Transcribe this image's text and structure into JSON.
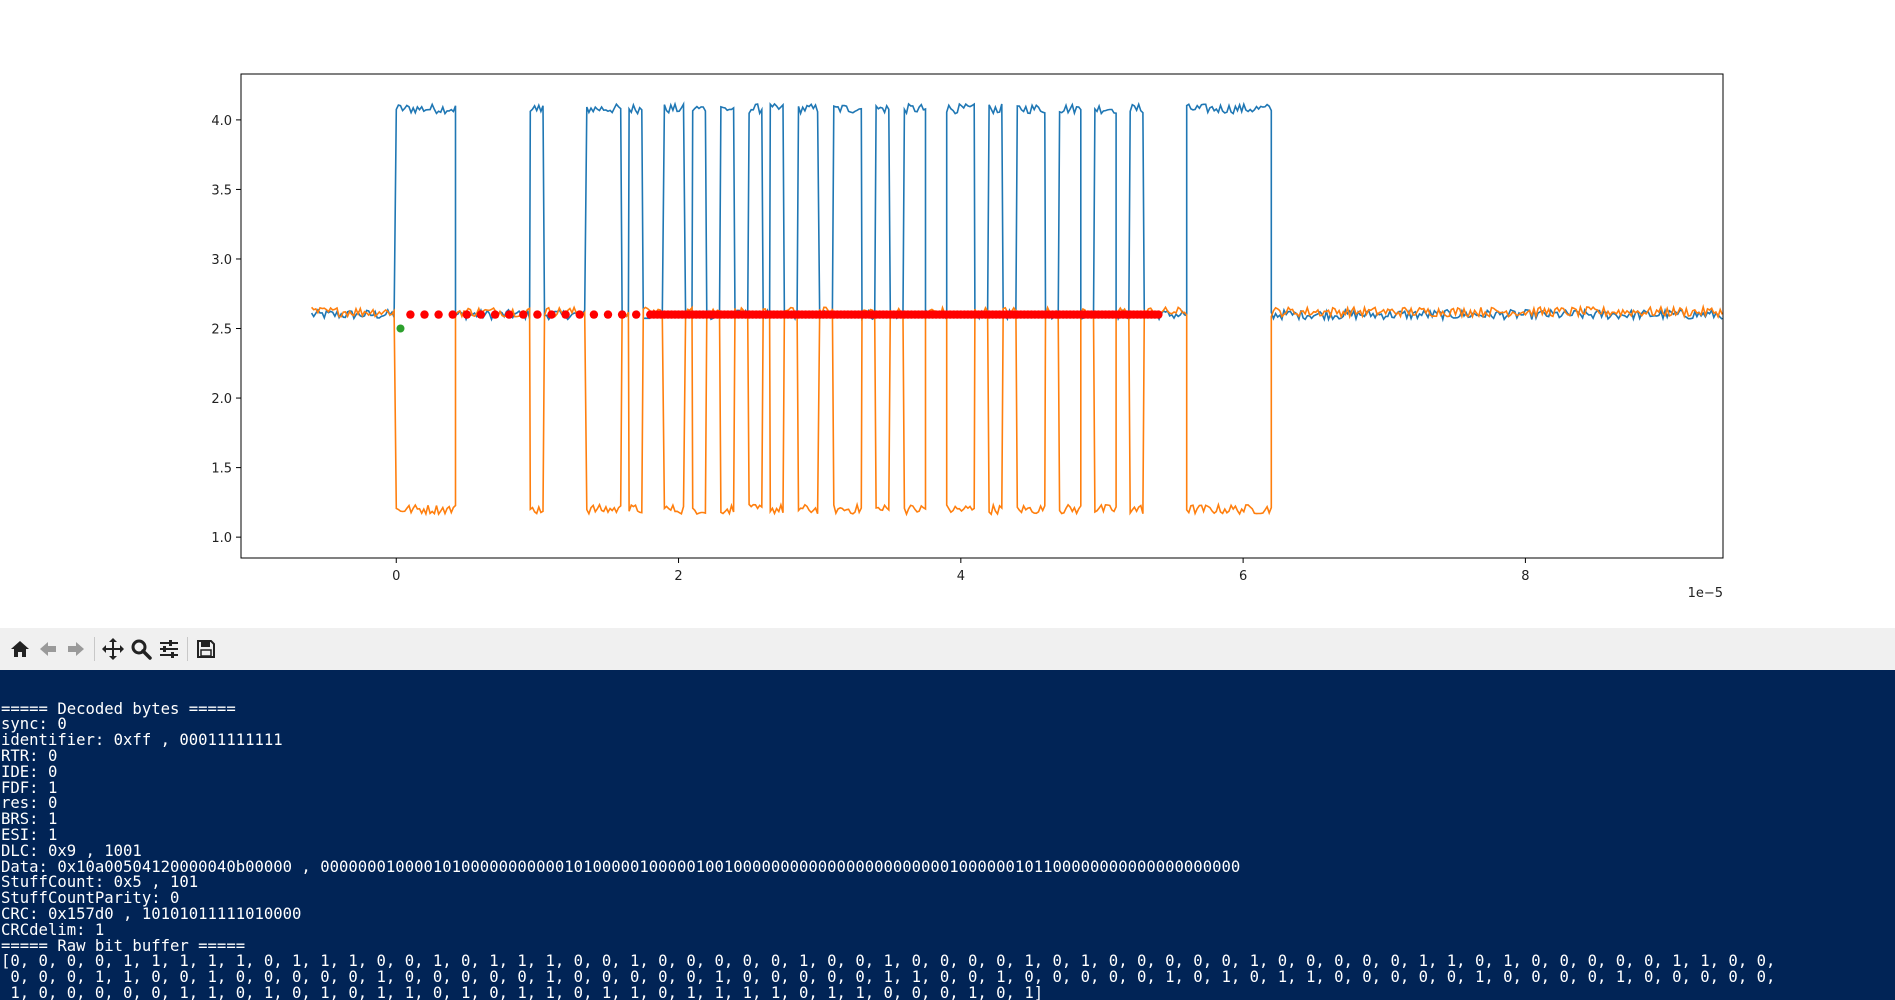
{
  "chart_data": {
    "type": "line",
    "x_tick_labels": [
      "0",
      "2",
      "4",
      "6",
      "8"
    ],
    "y_tick_labels": [
      "1.0",
      "1.5",
      "2.0",
      "2.5",
      "3.0",
      "3.5",
      "4.0"
    ],
    "x_offset_label": "1e−5",
    "xlim": [
      -1.1e-05,
      9.4e-05
    ],
    "ylim": [
      0.85,
      4.33
    ],
    "grid": false,
    "legend": "none",
    "series": [
      {
        "color": "#1f77b4",
        "dominant_high": 4.08,
        "recessive": 2.6,
        "segments": [
          [
            -6e-06,
            0.0,
            0
          ],
          [
            0.0,
            4.2e-06,
            1
          ],
          [
            4.2e-06,
            9.5e-06,
            0
          ],
          [
            9.5e-06,
            1.05e-05,
            1
          ],
          [
            1.05e-05,
            1.35e-05,
            0
          ],
          [
            1.35e-05,
            1.6e-05,
            1
          ],
          [
            1.6e-05,
            1.65e-05,
            0
          ],
          [
            1.65e-05,
            1.75e-05,
            1
          ],
          [
            1.75e-05,
            1.9e-05,
            0
          ],
          [
            1.9e-05,
            2.05e-05,
            1
          ],
          [
            2.05e-05,
            2.1e-05,
            0
          ],
          [
            2.1e-05,
            2.2e-05,
            1
          ],
          [
            2.2e-05,
            2.3e-05,
            0
          ],
          [
            2.3e-05,
            2.4e-05,
            1
          ],
          [
            2.4e-05,
            2.5e-05,
            0
          ],
          [
            2.5e-05,
            2.6e-05,
            1
          ],
          [
            2.6e-05,
            2.65e-05,
            0
          ],
          [
            2.65e-05,
            2.75e-05,
            1
          ],
          [
            2.75e-05,
            2.85e-05,
            0
          ],
          [
            2.85e-05,
            3e-05,
            1
          ],
          [
            3e-05,
            3.1e-05,
            0
          ],
          [
            3.1e-05,
            3.3e-05,
            1
          ],
          [
            3.3e-05,
            3.4e-05,
            0
          ],
          [
            3.4e-05,
            3.5e-05,
            1
          ],
          [
            3.5e-05,
            3.6e-05,
            0
          ],
          [
            3.6e-05,
            3.75e-05,
            1
          ],
          [
            3.75e-05,
            3.9e-05,
            0
          ],
          [
            3.9e-05,
            4.1e-05,
            1
          ],
          [
            4.1e-05,
            4.2e-05,
            0
          ],
          [
            4.2e-05,
            4.3e-05,
            1
          ],
          [
            4.3e-05,
            4.4e-05,
            0
          ],
          [
            4.4e-05,
            4.6e-05,
            1
          ],
          [
            4.6e-05,
            4.7e-05,
            0
          ],
          [
            4.7e-05,
            4.85e-05,
            1
          ],
          [
            4.85e-05,
            4.95e-05,
            0
          ],
          [
            4.95e-05,
            5.1e-05,
            1
          ],
          [
            5.1e-05,
            5.2e-05,
            0
          ],
          [
            5.2e-05,
            5.3e-05,
            1
          ],
          [
            5.3e-05,
            5.6e-05,
            0
          ],
          [
            5.6e-05,
            6.2e-05,
            1
          ],
          [
            6.2e-05,
            9.4e-05,
            0
          ]
        ]
      },
      {
        "color": "#ff7f0e",
        "dominant_low": 1.2,
        "recessive": 2.62,
        "mirror_of_series": 0
      }
    ],
    "sample_points": {
      "color": "#ff0000",
      "y": 2.6,
      "x_start": 1e-06,
      "x_end": 5.4e-05,
      "marker": "dot"
    },
    "start_marker": {
      "color": "#2ca02c",
      "x": 3e-07,
      "y": 2.5
    }
  },
  "toolbar": {
    "buttons": [
      "home-icon",
      "back-icon",
      "forward-icon",
      "pan-icon",
      "zoom-icon",
      "configure-icon",
      "save-icon"
    ]
  },
  "console": {
    "lines": [
      "===== Decoded bytes =====",
      "sync: 0",
      "identifier: 0xff , 00011111111",
      "RTR: 0",
      "IDE: 0",
      "FDF: 1",
      "res: 0",
      "BRS: 1",
      "ESI: 1",
      "DLC: 0x9 , 1001",
      "Data: 0x10a00504120000040b00000 , 00000001000010100000000000101000001000001001000000000000000000000001000000101100000000000000000000",
      "StuffCount: 0x5 , 101",
      "StuffCountParity: 0",
      "CRC: 0x157d0 , 10101011111010000",
      "CRCdelim: 1",
      "===== Raw bit buffer =====",
      "[0, 0, 0, 0, 1, 1, 1, 1, 1, 0, 1, 1, 1, 0, 0, 1, 0, 1, 1, 1, 0, 0, 1, 0, 0, 0, 0, 0, 1, 0, 0, 1, 0, 0, 0, 0, 1, 0, 1, 0, 0, 0, 0, 0, 1, 0, 0, 0, 0, 0, 1, 1, 0, 1, 0, 0, 0, 0, 0, 1, 1, 0, 0,",
      " 0, 0, 0, 1, 1, 0, 0, 1, 0, 0, 0, 0, 0, 1, 0, 0, 0, 0, 0, 1, 0, 0, 0, 0, 0, 1, 0, 0, 0, 0, 0, 1, 1, 0, 0, 1, 0, 0, 0, 0, 0, 1, 0, 1, 0, 1, 1, 0, 0, 0, 0, 0, 1, 0, 0, 0, 0, 1, 0, 0, 0, 0, 0,",
      " 1, 0, 0, 0, 0, 0, 1, 1, 0, 1, 0, 1, 0, 1, 1, 0, 1, 0, 1, 1, 0, 1, 1, 0, 1, 1, 1, 1, 0, 1, 1, 0, 0, 0, 1, 0, 1]"
    ]
  }
}
